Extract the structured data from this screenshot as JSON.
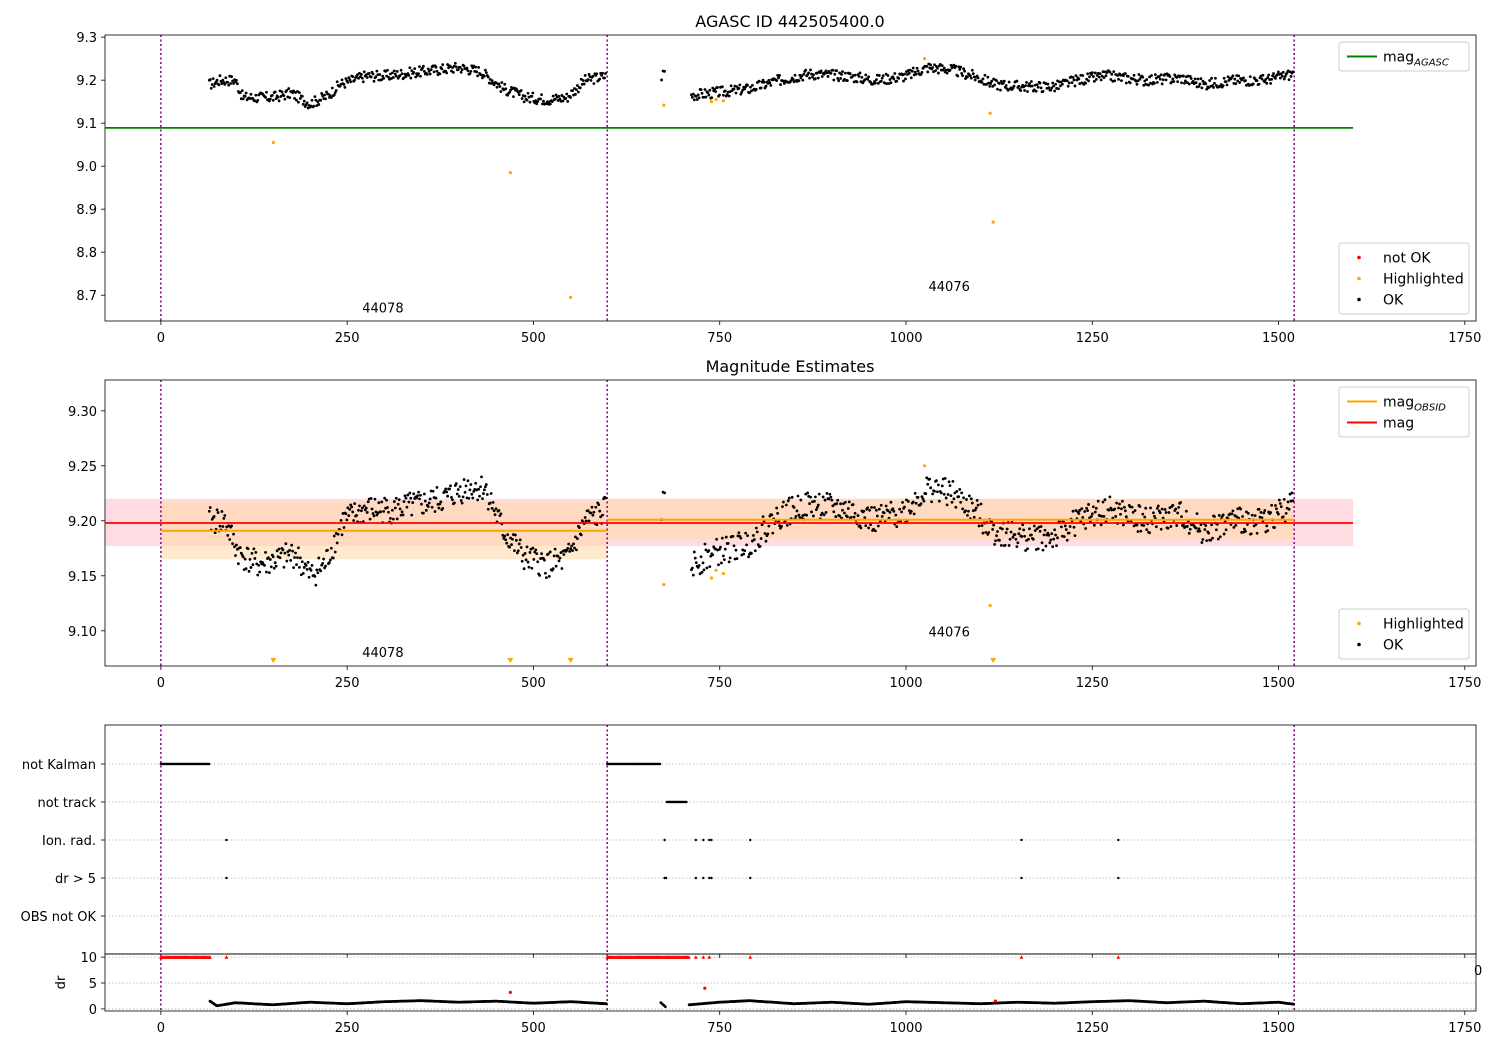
{
  "chart_data": [
    {
      "type": "scatter",
      "title": "AGASC ID 442505400.0",
      "xlim": [
        -75,
        1765
      ],
      "ylim": [
        8.64,
        9.305
      ],
      "xticks": [
        "0",
        "250",
        "500",
        "750",
        "1000",
        "1250",
        "1500",
        "1750"
      ],
      "yticks": [
        "8.7",
        "8.8",
        "8.9",
        "9.0",
        "9.1",
        "9.2",
        "9.3"
      ],
      "obsid_boundaries": [
        0,
        599,
        1521
      ],
      "obsid_labels": [
        {
          "text": "44078",
          "x": 298,
          "y": 8.66
        },
        {
          "text": "44076",
          "x": 1058,
          "y": 8.71
        }
      ],
      "hline": {
        "name": "mag_AGASC",
        "label": "mag",
        "label_sub": "AGASC",
        "y": 9.089,
        "x": [
          -75,
          1600
        ],
        "color": "#008000"
      },
      "legends": [
        {
          "position": "top-right",
          "entries": [
            {
              "label": "mag",
              "sub": "AGASC",
              "kind": "line",
              "color": "#008000"
            }
          ]
        },
        {
          "position": "bottom-right",
          "entries": [
            {
              "label": "not OK",
              "kind": "dot",
              "color": "#ff0000"
            },
            {
              "label": "Highlighted",
              "kind": "dot",
              "color": "#ffa500"
            },
            {
              "label": "OK",
              "kind": "dot",
              "color": "#000000"
            }
          ]
        }
      ],
      "highlighted_points": [
        [
          151,
          9.055
        ],
        [
          469,
          8.985
        ],
        [
          550,
          8.695
        ],
        [
          675,
          9.142
        ],
        [
          739,
          9.15
        ],
        [
          745,
          9.155
        ],
        [
          755,
          9.152
        ],
        [
          1025,
          9.25
        ],
        [
          1113,
          9.123
        ],
        [
          1117,
          8.87
        ]
      ],
      "ok_series_profile": [
        [
          [
            65,
            9.19
          ],
          [
            80,
            9.2
          ],
          [
            100,
            9.2
          ],
          [
            110,
            9.16
          ],
          [
            150,
            9.16
          ],
          [
            175,
            9.17
          ],
          [
            200,
            9.145
          ],
          [
            225,
            9.165
          ],
          [
            240,
            9.19
          ],
          [
            275,
            9.21
          ],
          [
            300,
            9.21
          ],
          [
            350,
            9.22
          ],
          [
            400,
            9.23
          ],
          [
            430,
            9.22
          ],
          [
            460,
            9.18
          ],
          [
            490,
            9.16
          ],
          [
            520,
            9.155
          ],
          [
            545,
            9.16
          ],
          [
            570,
            9.2
          ],
          [
            598,
            9.21
          ]
        ],
        [
          [
            672,
            9.21
          ],
          [
            676,
            9.22
          ]
        ],
        [
          [
            712,
            9.165
          ],
          [
            740,
            9.17
          ],
          [
            790,
            9.18
          ],
          [
            830,
            9.2
          ],
          [
            870,
            9.215
          ],
          [
            920,
            9.21
          ],
          [
            960,
            9.2
          ],
          [
            1000,
            9.21
          ],
          [
            1030,
            9.23
          ],
          [
            1060,
            9.225
          ],
          [
            1090,
            9.21
          ],
          [
            1120,
            9.19
          ],
          [
            1160,
            9.185
          ],
          [
            1200,
            9.185
          ],
          [
            1230,
            9.2
          ],
          [
            1270,
            9.21
          ],
          [
            1320,
            9.2
          ],
          [
            1370,
            9.205
          ],
          [
            1400,
            9.19
          ],
          [
            1440,
            9.2
          ],
          [
            1480,
            9.2
          ],
          [
            1520,
            9.215
          ]
        ]
      ]
    },
    {
      "type": "scatter",
      "title": "Magnitude Estimates",
      "xlim": [
        -75,
        1765
      ],
      "ylim": [
        9.068,
        9.328
      ],
      "xticks": [
        "0",
        "250",
        "500",
        "750",
        "1000",
        "1250",
        "1500",
        "1750"
      ],
      "yticks": [
        "9.10",
        "9.15",
        "9.20",
        "9.25",
        "9.30"
      ],
      "obsid_boundaries": [
        0,
        599,
        1521
      ],
      "obsid_labels": [
        {
          "text": "44078",
          "x": 298,
          "y": 9.076
        },
        {
          "text": "44076",
          "x": 1058,
          "y": 9.095
        }
      ],
      "mag": {
        "label": "mag",
        "y": 9.198,
        "band": [
          9.177,
          9.22
        ],
        "x": [
          -75,
          1600
        ],
        "color": "#ff0000",
        "band_color": "#ffc0c8"
      },
      "mag_obsid": {
        "label": "mag",
        "label_sub": "OBSID",
        "color": "#ffa500",
        "band_color": "#ffd9a8",
        "segments": [
          {
            "x": [
              0,
              599
            ],
            "y": 9.191,
            "band": [
              9.165,
              9.218
            ]
          },
          {
            "x": [
              599,
              1521
            ],
            "y": 9.201,
            "band": [
              9.183,
              9.22
            ]
          }
        ]
      },
      "legends": [
        {
          "position": "top-right",
          "entries": [
            {
              "label": "mag",
              "sub": "OBSID",
              "kind": "line",
              "color": "#ffa500"
            },
            {
              "label": "mag",
              "kind": "line",
              "color": "#ff0000"
            }
          ]
        },
        {
          "position": "bottom-right",
          "entries": [
            {
              "label": "Highlighted",
              "kind": "dot",
              "color": "#ffa500"
            },
            {
              "label": "OK",
              "kind": "dot",
              "color": "#000000"
            }
          ]
        }
      ],
      "highlighted_points": [
        [
          675,
          9.142
        ],
        [
          739,
          9.148
        ],
        [
          745,
          9.155
        ],
        [
          755,
          9.152
        ],
        [
          1025,
          9.25
        ],
        [
          1113,
          9.123
        ]
      ],
      "out_of_range_markers_x": [
        151,
        469,
        550,
        1117
      ],
      "ok_series_profile": [
        [
          [
            65,
            9.2
          ],
          [
            85,
            9.2
          ],
          [
            105,
            9.17
          ],
          [
            130,
            9.16
          ],
          [
            160,
            9.165
          ],
          [
            180,
            9.17
          ],
          [
            200,
            9.15
          ],
          [
            220,
            9.16
          ],
          [
            245,
            9.2
          ],
          [
            275,
            9.21
          ],
          [
            310,
            9.21
          ],
          [
            350,
            9.215
          ],
          [
            380,
            9.22
          ],
          [
            410,
            9.23
          ],
          [
            435,
            9.23
          ],
          [
            460,
            9.19
          ],
          [
            490,
            9.165
          ],
          [
            520,
            9.16
          ],
          [
            545,
            9.165
          ],
          [
            570,
            9.2
          ],
          [
            598,
            9.21
          ]
        ],
        [
          [
            672,
            9.21
          ],
          [
            676,
            9.22
          ]
        ],
        [
          [
            712,
            9.16
          ],
          [
            740,
            9.17
          ],
          [
            790,
            9.18
          ],
          [
            830,
            9.205
          ],
          [
            870,
            9.215
          ],
          [
            920,
            9.21
          ],
          [
            960,
            9.2
          ],
          [
            1000,
            9.21
          ],
          [
            1030,
            9.23
          ],
          [
            1060,
            9.225
          ],
          [
            1090,
            9.21
          ],
          [
            1120,
            9.19
          ],
          [
            1160,
            9.185
          ],
          [
            1200,
            9.185
          ],
          [
            1230,
            9.2
          ],
          [
            1270,
            9.21
          ],
          [
            1320,
            9.2
          ],
          [
            1370,
            9.205
          ],
          [
            1400,
            9.19
          ],
          [
            1440,
            9.2
          ],
          [
            1480,
            9.2
          ],
          [
            1520,
            9.215
          ]
        ]
      ]
    },
    {
      "type": "scatter",
      "title": "",
      "xlim": [
        -75,
        1765
      ],
      "xticks": [
        "0",
        "250",
        "500",
        "750",
        "1000",
        "1250",
        "1500",
        "1750"
      ],
      "obsid_boundaries": [
        0,
        599,
        1521
      ],
      "flag_categories": [
        "not Kalman",
        "not track",
        "Ion. rad.",
        "dr > 5",
        "OBS not OK"
      ],
      "flag_intervals": [
        {
          "category": "not Kalman",
          "ranges": [
            [
              0,
              66
            ],
            [
              599,
              671
            ]
          ]
        },
        {
          "category": "not track",
          "ranges": [
            [
              679,
              706
            ]
          ]
        }
      ],
      "flag_points": [
        {
          "category": "Ion. rad.",
          "x": [
            88,
            676,
            718,
            728,
            736,
            739,
            791,
            1155,
            1285
          ]
        },
        {
          "category": "dr > 5",
          "x": [
            88,
            676,
            678,
            718,
            728,
            736,
            739,
            791,
            1155,
            1285
          ]
        }
      ]
    },
    {
      "type": "scatter",
      "title": "",
      "ylabel": "dr",
      "xlim": [
        -75,
        1765
      ],
      "ylim": [
        -0.4,
        10.6
      ],
      "xticks": [
        "0",
        "250",
        "500",
        "750",
        "1000",
        "1250",
        "1500",
        "1750"
      ],
      "yticks": [
        "0",
        "5",
        "10"
      ],
      "extra_tick_label": "0",
      "obsid_boundaries": [
        0,
        599,
        1521
      ],
      "capped_points": {
        "y": 10,
        "color": "#ff0000",
        "ranges": [
          [
            0,
            66
          ],
          [
            599,
            709
          ]
        ],
        "x": [
          88,
          718,
          728,
          736,
          791,
          1155,
          1285
        ]
      },
      "red_points": [
        [
          469,
          3.2
        ],
        [
          730,
          4.0
        ],
        [
          1120,
          1.5
        ]
      ],
      "ok_series_profile": [
        [
          [
            66,
            1.5
          ],
          [
            75,
            0.6
          ],
          [
            100,
            1.2
          ],
          [
            150,
            0.8
          ],
          [
            200,
            1.3
          ],
          [
            250,
            1.0
          ],
          [
            300,
            1.4
          ],
          [
            350,
            1.6
          ],
          [
            400,
            1.3
          ],
          [
            450,
            1.5
          ],
          [
            500,
            1.1
          ],
          [
            550,
            1.4
          ],
          [
            598,
            1.0
          ]
        ],
        [
          [
            671,
            1.2
          ],
          [
            678,
            0.3
          ]
        ],
        [
          [
            709,
            0.8
          ],
          [
            750,
            1.3
          ],
          [
            790,
            1.6
          ],
          [
            850,
            1.0
          ],
          [
            900,
            1.3
          ],
          [
            950,
            0.9
          ],
          [
            1000,
            1.4
          ],
          [
            1050,
            1.2
          ],
          [
            1100,
            1.0
          ],
          [
            1150,
            1.3
          ],
          [
            1200,
            1.1
          ],
          [
            1250,
            1.4
          ],
          [
            1300,
            1.6
          ],
          [
            1350,
            1.2
          ],
          [
            1400,
            1.5
          ],
          [
            1450,
            1.0
          ],
          [
            1500,
            1.3
          ],
          [
            1521,
            0.9
          ]
        ]
      ]
    }
  ]
}
